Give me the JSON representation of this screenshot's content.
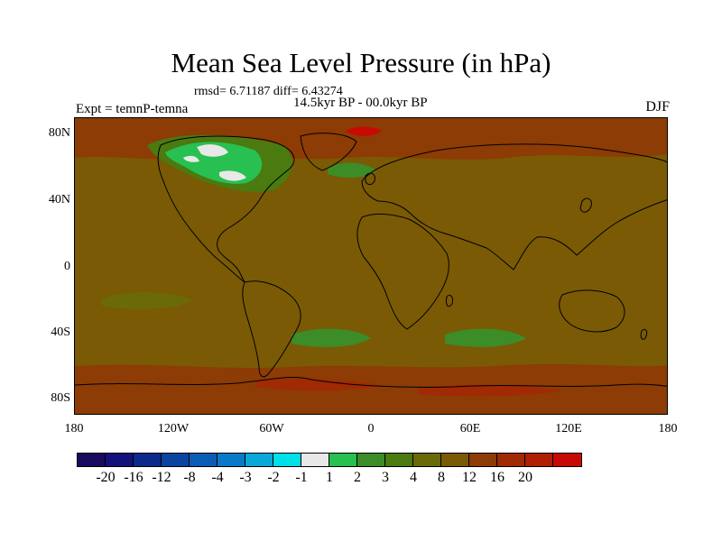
{
  "title": "Mean Sea Level Pressure (in hPa)",
  "stats_text": "rmsd= 6.71187 diff= 6.43274",
  "period_text": "14.5kyr BP - 00.0kyr BP",
  "experiment_text": "Expt = temnP-temna",
  "season_text": "DJF",
  "lat_ticks": [
    "80N",
    "40N",
    "0",
    "40S",
    "80S"
  ],
  "lon_ticks": [
    "180",
    "120W",
    "60W",
    "0",
    "60E",
    "120E",
    "180"
  ],
  "colorbar": {
    "colors": [
      "#1a0a5e",
      "#12127a",
      "#0a2a8c",
      "#0a44a0",
      "#0a5cb4",
      "#0a7ac8",
      "#0aa8d8",
      "#00e0e8",
      "#e8e8e8",
      "#28c050",
      "#3c8c28",
      "#4a7a10",
      "#6a6a08",
      "#7a5a04",
      "#8c3c04",
      "#a02a04",
      "#b01e04",
      "#c80a04"
    ],
    "labels": [
      "-20",
      "-16",
      "-12",
      "-8",
      "-4",
      "-3",
      "-2",
      "-1",
      "1",
      "2",
      "3",
      "4",
      "8",
      "12",
      "16",
      "20"
    ]
  },
  "map_colors": {
    "base": "#7a5a04",
    "higher": "#8c3c04",
    "high": "#a02a04",
    "highest": "#c80a04",
    "lower": "#6a6a08",
    "low": "#4a7a10",
    "lowest": "#3c8c28",
    "neg": "#28c050",
    "white": "#e8e8e8"
  }
}
